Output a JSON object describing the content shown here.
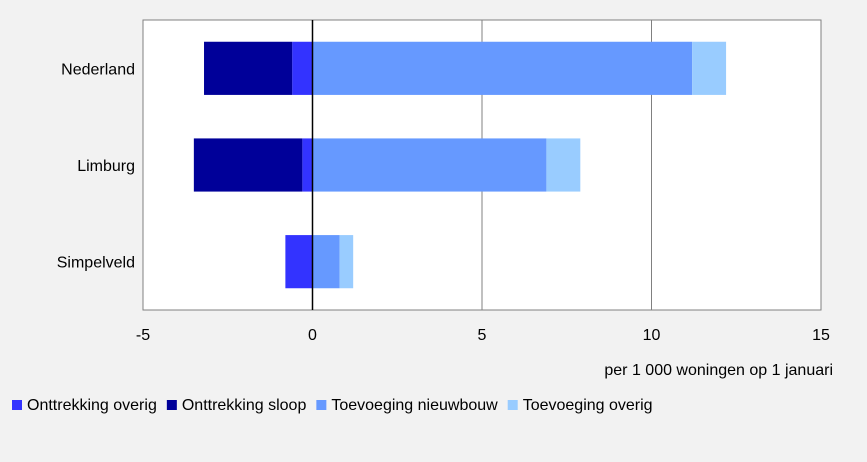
{
  "chart_data": {
    "type": "bar",
    "orientation": "horizontal",
    "stacked": true,
    "categories": [
      "Nederland",
      "Limburg",
      "Simpelveld"
    ],
    "series": [
      {
        "name": "Onttrekking overig",
        "values": [
          -0.6,
          -0.3,
          -0.8
        ],
        "color": "#3333ff"
      },
      {
        "name": "Onttrekking sloop",
        "values": [
          -2.6,
          -3.2,
          0
        ],
        "color": "#000099"
      },
      {
        "name": "Toevoeging nieuwbouw",
        "values": [
          11.2,
          6.9,
          0.8
        ],
        "color": "#6699ff"
      },
      {
        "name": "Toevoeging overig",
        "values": [
          1.0,
          1.0,
          0.4
        ],
        "color": "#99ccff"
      }
    ],
    "xlim": [
      -5,
      15
    ],
    "xticks": [
      "-5",
      "0",
      "5",
      "10",
      "15"
    ],
    "xlabel": "per 1 000 woningen op 1 januari",
    "grid": true,
    "legend_position": "bottom"
  }
}
